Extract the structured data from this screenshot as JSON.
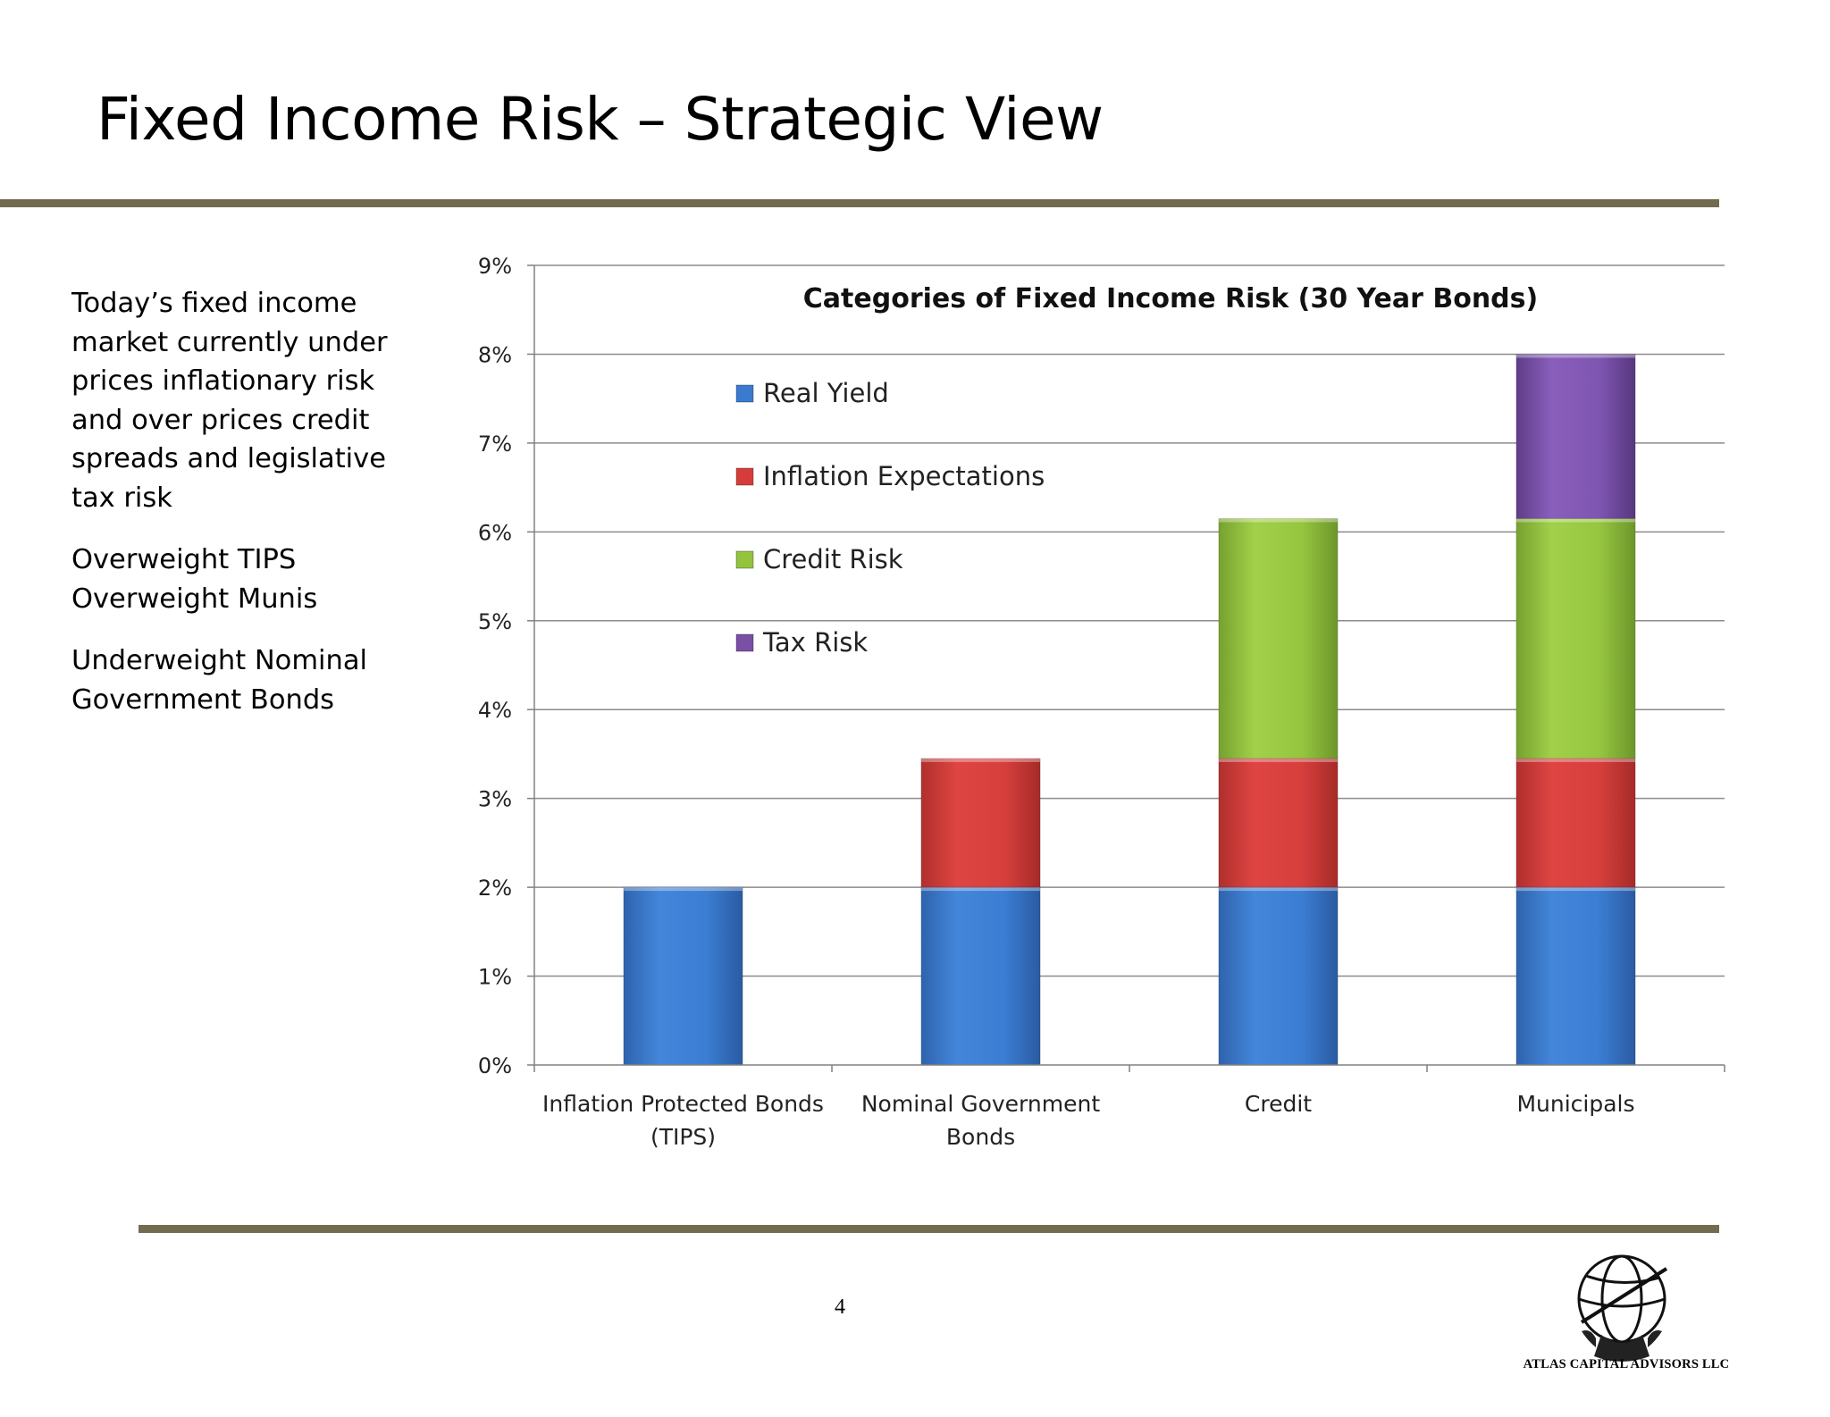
{
  "slide": {
    "title": "Fixed Income Risk – Strategic View",
    "page_number": "4",
    "logo_text": "ATLAS CAPITAL ADVISORS LLC"
  },
  "commentary": {
    "paragraph1": [
      "Today’s fixed income",
      "market currently under",
      "prices inflationary risk",
      "and over prices credit",
      "spreads and legislative",
      "tax risk"
    ],
    "paragraph2": [
      "Overweight TIPS",
      "Overweight Munis"
    ],
    "paragraph3": [
      "Underweight Nominal",
      "Government Bonds"
    ]
  },
  "colors": {
    "rule": "#736b4f",
    "real_yield": "#3a7bd0",
    "inflation_expectations": "#d63d3a",
    "credit_risk": "#93c33f",
    "tax_risk": "#7a4fa6",
    "grid": "#8c8c8c"
  },
  "chart_data": {
    "type": "bar",
    "stacked": true,
    "title": "Categories of Fixed Income Risk (30 Year Bonds)",
    "xlabel": "",
    "ylabel": "",
    "ylim": [
      0,
      9
    ],
    "y_ticks": [
      0,
      1,
      2,
      3,
      4,
      5,
      6,
      7,
      8,
      9
    ],
    "y_tick_labels": [
      "0%",
      "1%",
      "2%",
      "3%",
      "4%",
      "5%",
      "6%",
      "7%",
      "8%",
      "9%"
    ],
    "grid": true,
    "legend_position": "top-left",
    "categories": [
      [
        "Inflation Protected Bonds",
        "(TIPS)"
      ],
      [
        "Nominal Government",
        "Bonds"
      ],
      [
        "Credit"
      ],
      [
        "Municipals"
      ]
    ],
    "series": [
      {
        "name": "Real Yield",
        "values": [
          2.0,
          2.0,
          2.0,
          2.0
        ]
      },
      {
        "name": "Inflation Expectations",
        "values": [
          0,
          1.45,
          1.45,
          1.45
        ]
      },
      {
        "name": "Credit Risk",
        "values": [
          0,
          0,
          2.7,
          2.7
        ]
      },
      {
        "name": "Tax Risk",
        "values": [
          0,
          0,
          0,
          1.85
        ]
      }
    ]
  }
}
